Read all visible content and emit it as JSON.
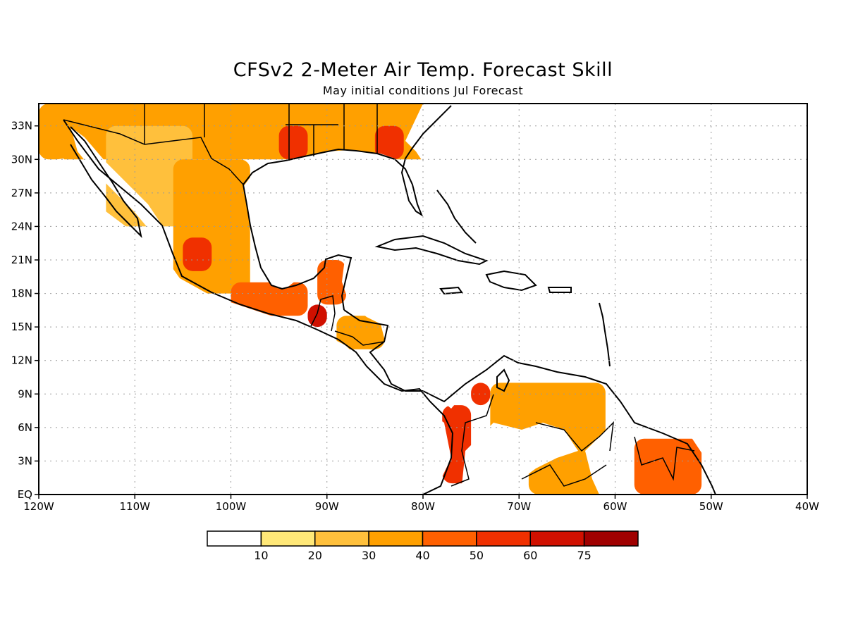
{
  "title": "CFSv2 2-Meter Air Temp. Forecast Skill",
  "subtitle": "May initial conditions  Jul Forecast",
  "map": {
    "lon_range": [
      -120,
      -40
    ],
    "lat_range": [
      0,
      35
    ],
    "lon_ticks": [
      {
        "lon": -120,
        "label": "120W"
      },
      {
        "lon": -110,
        "label": "110W"
      },
      {
        "lon": -100,
        "label": "100W"
      },
      {
        "lon": -90,
        "label": "90W"
      },
      {
        "lon": -80,
        "label": "80W"
      },
      {
        "lon": -70,
        "label": "70W"
      },
      {
        "lon": -60,
        "label": "60W"
      },
      {
        "lon": -50,
        "label": "50W"
      },
      {
        "lon": -40,
        "label": "40W"
      }
    ],
    "lat_ticks": [
      {
        "lat": 0,
        "label": "EQ"
      },
      {
        "lat": 3,
        "label": "3N"
      },
      {
        "lat": 6,
        "label": "6N"
      },
      {
        "lat": 9,
        "label": "9N"
      },
      {
        "lat": 12,
        "label": "12N"
      },
      {
        "lat": 15,
        "label": "15N"
      },
      {
        "lat": 18,
        "label": "18N"
      },
      {
        "lat": 21,
        "label": "21N"
      },
      {
        "lat": 24,
        "label": "24N"
      },
      {
        "lat": 27,
        "label": "27N"
      },
      {
        "lat": 30,
        "label": "30N"
      },
      {
        "lat": 33,
        "label": "33N"
      }
    ],
    "grid": true,
    "skill_regions": [
      {
        "name": "southern US",
        "lon_min": -120,
        "lon_max": -78,
        "lat_min": 30,
        "lat_max": 35,
        "level": 30
      },
      {
        "name": "northwest Mexico",
        "lon_min": -113,
        "lon_max": -104,
        "lat_min": 24,
        "lat_max": 33,
        "level": 20
      },
      {
        "name": "central Mexico",
        "lon_min": -106,
        "lon_max": -98,
        "lat_min": 18,
        "lat_max": 30,
        "level": 30
      },
      {
        "name": "western Mexico core",
        "lon_min": -105,
        "lon_max": -102,
        "lat_min": 20,
        "lat_max": 23,
        "level": 50
      },
      {
        "name": "southern Mexico",
        "lon_min": -100,
        "lon_max": -92,
        "lat_min": 16,
        "lat_max": 19,
        "level": 40
      },
      {
        "name": "Guatemala core",
        "lon_min": -92,
        "lon_max": -90,
        "lat_min": 15,
        "lat_max": 17,
        "level": 60
      },
      {
        "name": "Yucatan",
        "lon_min": -91,
        "lon_max": -88,
        "lat_min": 17,
        "lat_max": 21,
        "level": 40
      },
      {
        "name": "Honduras",
        "lon_min": -89,
        "lon_max": -84,
        "lat_min": 13,
        "lat_max": 16,
        "level": 30
      },
      {
        "name": "Colombia west",
        "lon_min": -78,
        "lon_max": -75,
        "lat_min": 1,
        "lat_max": 8,
        "level": 50
      },
      {
        "name": "Colombia north",
        "lon_min": -75,
        "lon_max": -73,
        "lat_min": 8,
        "lat_max": 10,
        "level": 50
      },
      {
        "name": "Venezuela",
        "lon_min": -73,
        "lon_max": -61,
        "lat_min": 4,
        "lat_max": 10,
        "level": 30
      },
      {
        "name": "Amazon north",
        "lon_min": -69,
        "lon_max": -61,
        "lat_min": 0,
        "lat_max": 4,
        "level": 30
      },
      {
        "name": "Guianas",
        "lon_min": -58,
        "lon_max": -51,
        "lat_min": 0,
        "lat_max": 5,
        "level": 40
      },
      {
        "name": "Texas core",
        "lon_min": -95,
        "lon_max": -92,
        "lat_min": 30,
        "lat_max": 33,
        "level": 50
      },
      {
        "name": "Georgia core",
        "lon_min": -85,
        "lon_max": -82,
        "lat_min": 30,
        "lat_max": 33,
        "level": 50
      }
    ]
  },
  "colorbar": {
    "colors": [
      "#ffffff",
      "#ffe878",
      "#ffc03c",
      "#ffa000",
      "#ff6000",
      "#f03000",
      "#d01000",
      "#a00000"
    ],
    "labels": [
      "10",
      "20",
      "30",
      "40",
      "50",
      "60",
      "75"
    ]
  }
}
